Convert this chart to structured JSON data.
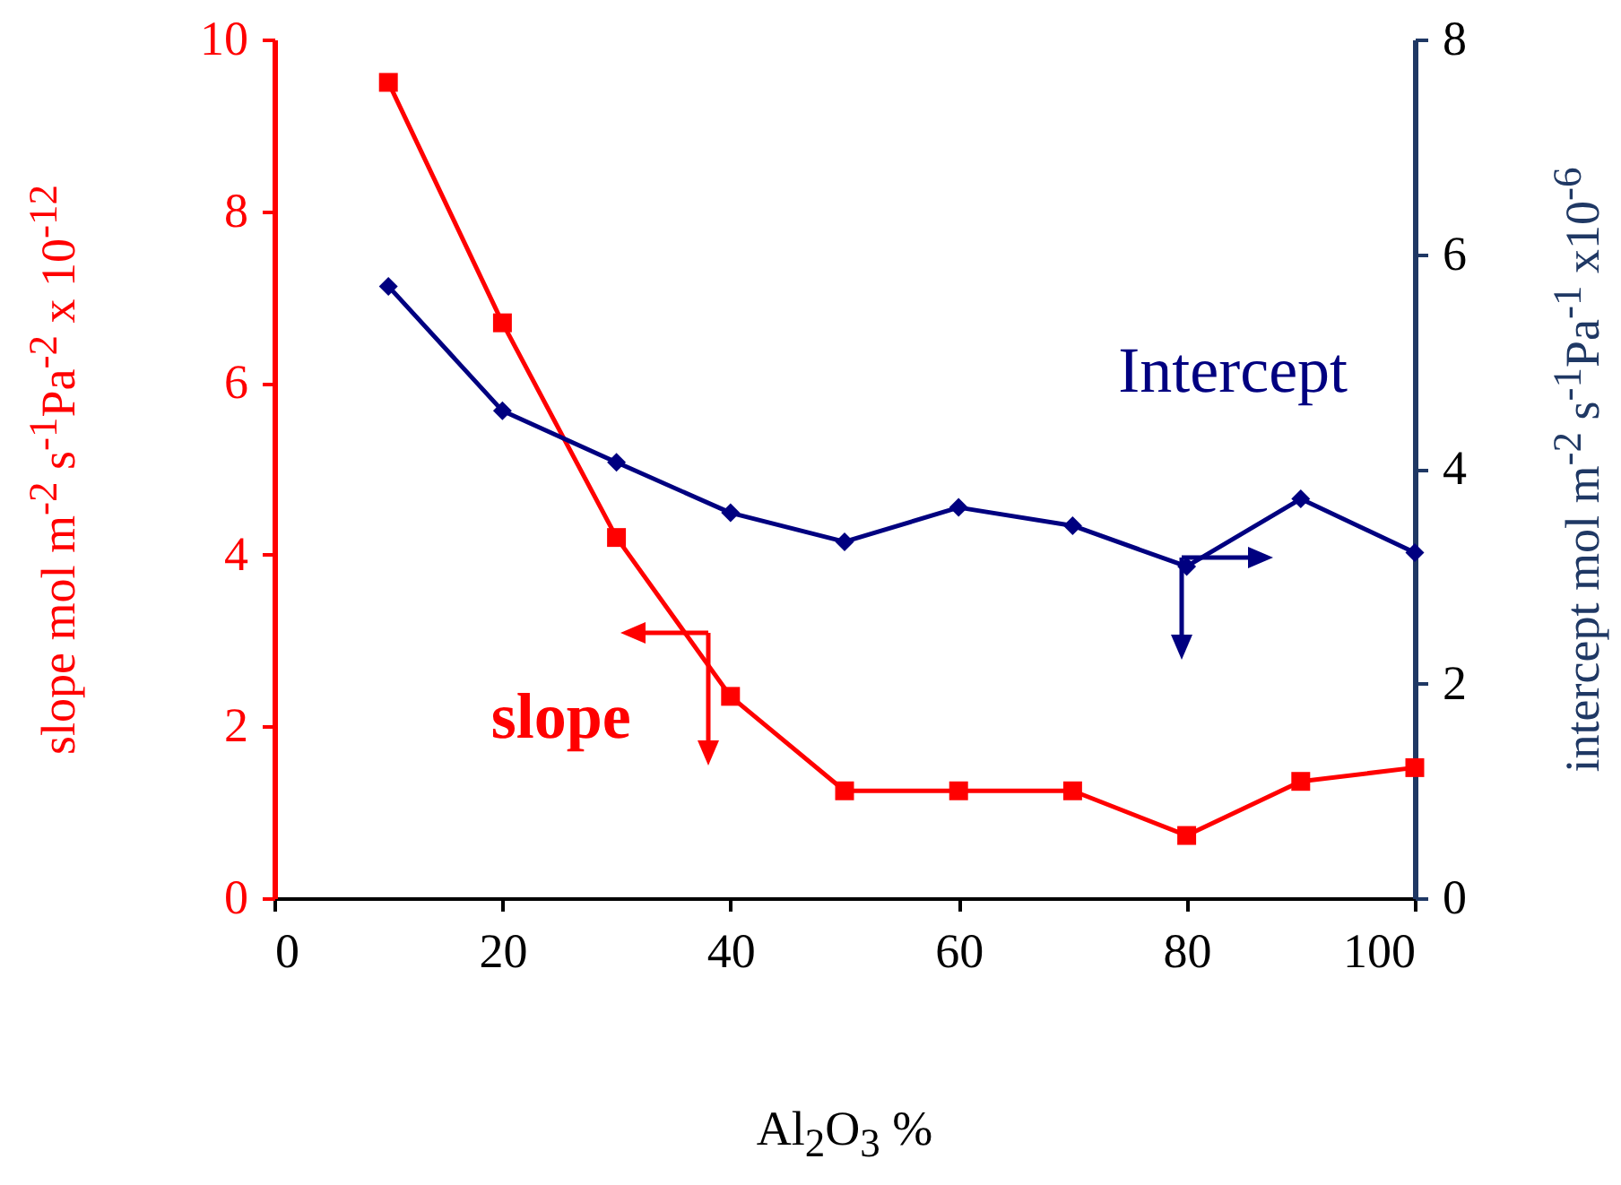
{
  "chart_data": {
    "type": "line",
    "xlabel": "Al$_{2}$O$_{3}$ %",
    "ylabel": "slope mol m$^{-2}$ s$^{-1}$Pa$^{-2}$ x 10$^{-12}$",
    "y2label": "intercept mol m$^{-2}$ s$^{-1}$Pa$^{-1}$ x10$^{-6}$",
    "x": [
      10,
      20,
      30,
      40,
      50,
      60,
      70,
      80,
      90,
      100
    ],
    "xlim": [
      0,
      100
    ],
    "xticks": [
      0,
      20,
      40,
      60,
      80,
      100
    ],
    "ylim": [
      0,
      10
    ],
    "yticks": [
      0,
      2,
      4,
      6,
      8,
      10
    ],
    "y2lim": [
      0,
      8
    ],
    "y2ticks": [
      0,
      2,
      4,
      6,
      8
    ],
    "grid": false,
    "series": [
      {
        "name": "slope",
        "color": "#ff0000",
        "marker": "square",
        "values": [
          9.5,
          6.7,
          4.2,
          2.35,
          1.25,
          1.25,
          1.25,
          0.73,
          1.36,
          1.52
        ]
      },
      {
        "name": "Intercept",
        "color": "#000080",
        "marker": "diamond",
        "axis": "y2",
        "values": [
          5.7,
          4.54,
          4.06,
          3.59,
          3.32,
          3.64,
          3.47,
          3.09,
          3.72,
          3.22
        ]
      }
    ]
  }
}
